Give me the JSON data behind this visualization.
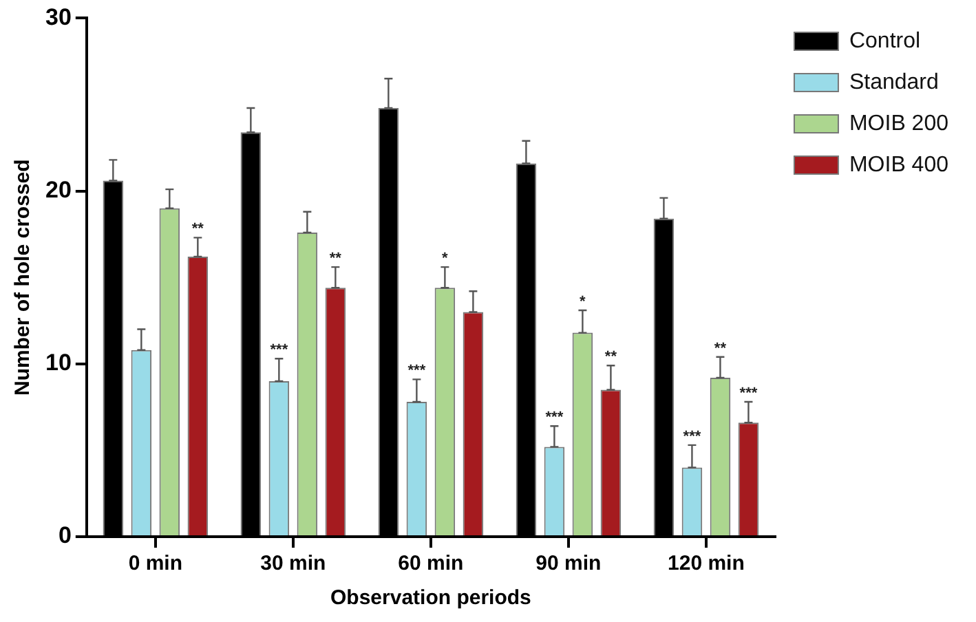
{
  "chart_data": {
    "type": "bar",
    "xlabel": "Observation periods",
    "ylabel": "Number of hole crossed",
    "categories": [
      "0 min",
      "30 min",
      "60 min",
      "90 min",
      "120 min"
    ],
    "series": [
      {
        "name": "Control",
        "color": "#000000",
        "values": [
          20.6,
          23.4,
          24.8,
          21.6,
          18.4
        ],
        "errors": [
          [
            20.6,
            21.8
          ],
          [
            23.4,
            24.8
          ],
          [
            24.8,
            26.5
          ],
          [
            21.6,
            22.9
          ],
          [
            18.4,
            19.6
          ]
        ]
      },
      {
        "name": "Standard",
        "color": "#99dbe8",
        "values": [
          10.8,
          9.0,
          7.8,
          5.2,
          4.0
        ],
        "errors": [
          [
            10.8,
            12.0
          ],
          [
            9.0,
            10.3
          ],
          [
            7.8,
            9.1
          ],
          [
            5.2,
            6.4
          ],
          [
            4.0,
            5.3
          ]
        ]
      },
      {
        "name": "MOIB 200",
        "color": "#acd68f",
        "values": [
          19.0,
          17.6,
          14.4,
          11.8,
          9.2
        ],
        "errors": [
          [
            19.0,
            20.1
          ],
          [
            17.6,
            18.8
          ],
          [
            14.4,
            15.6
          ],
          [
            11.8,
            13.1
          ],
          [
            9.2,
            10.4
          ]
        ]
      },
      {
        "name": "MOIB 400",
        "color": "#a51b1f",
        "values": [
          16.2,
          14.4,
          13.0,
          8.5,
          6.6
        ],
        "errors": [
          [
            16.2,
            17.3
          ],
          [
            14.4,
            15.6
          ],
          [
            13.0,
            14.2
          ],
          [
            8.5,
            9.9
          ],
          [
            6.6,
            7.8
          ]
        ]
      }
    ],
    "ylim": [
      0,
      30
    ],
    "yticks": [
      0,
      10,
      20,
      30
    ],
    "grid": false,
    "legend": "top right",
    "annotations": [
      {
        "text": "**",
        "x": "0 min",
        "y": 16.2
      },
      {
        "text": "***",
        "x": "30 min",
        "y": 9.0
      },
      {
        "text": "**",
        "x": "30 min",
        "y": 14.4
      },
      {
        "text": "***",
        "x": "60 min",
        "y": 7.8
      },
      {
        "text": "*",
        "x": "60 min",
        "y": 14.4
      },
      {
        "text": "***",
        "x": "90 min",
        "y": 5.2
      },
      {
        "text": "*",
        "x": "90 min",
        "y": 11.8
      },
      {
        "text": "**",
        "x": "90 min",
        "y": 8.5
      },
      {
        "text": "***",
        "x": "120 min",
        "y": 4.0
      },
      {
        "text": "**",
        "x": "120 min",
        "y": 9.2
      },
      {
        "text": "***",
        "x": "120 min",
        "y": 6.6
      }
    ]
  }
}
